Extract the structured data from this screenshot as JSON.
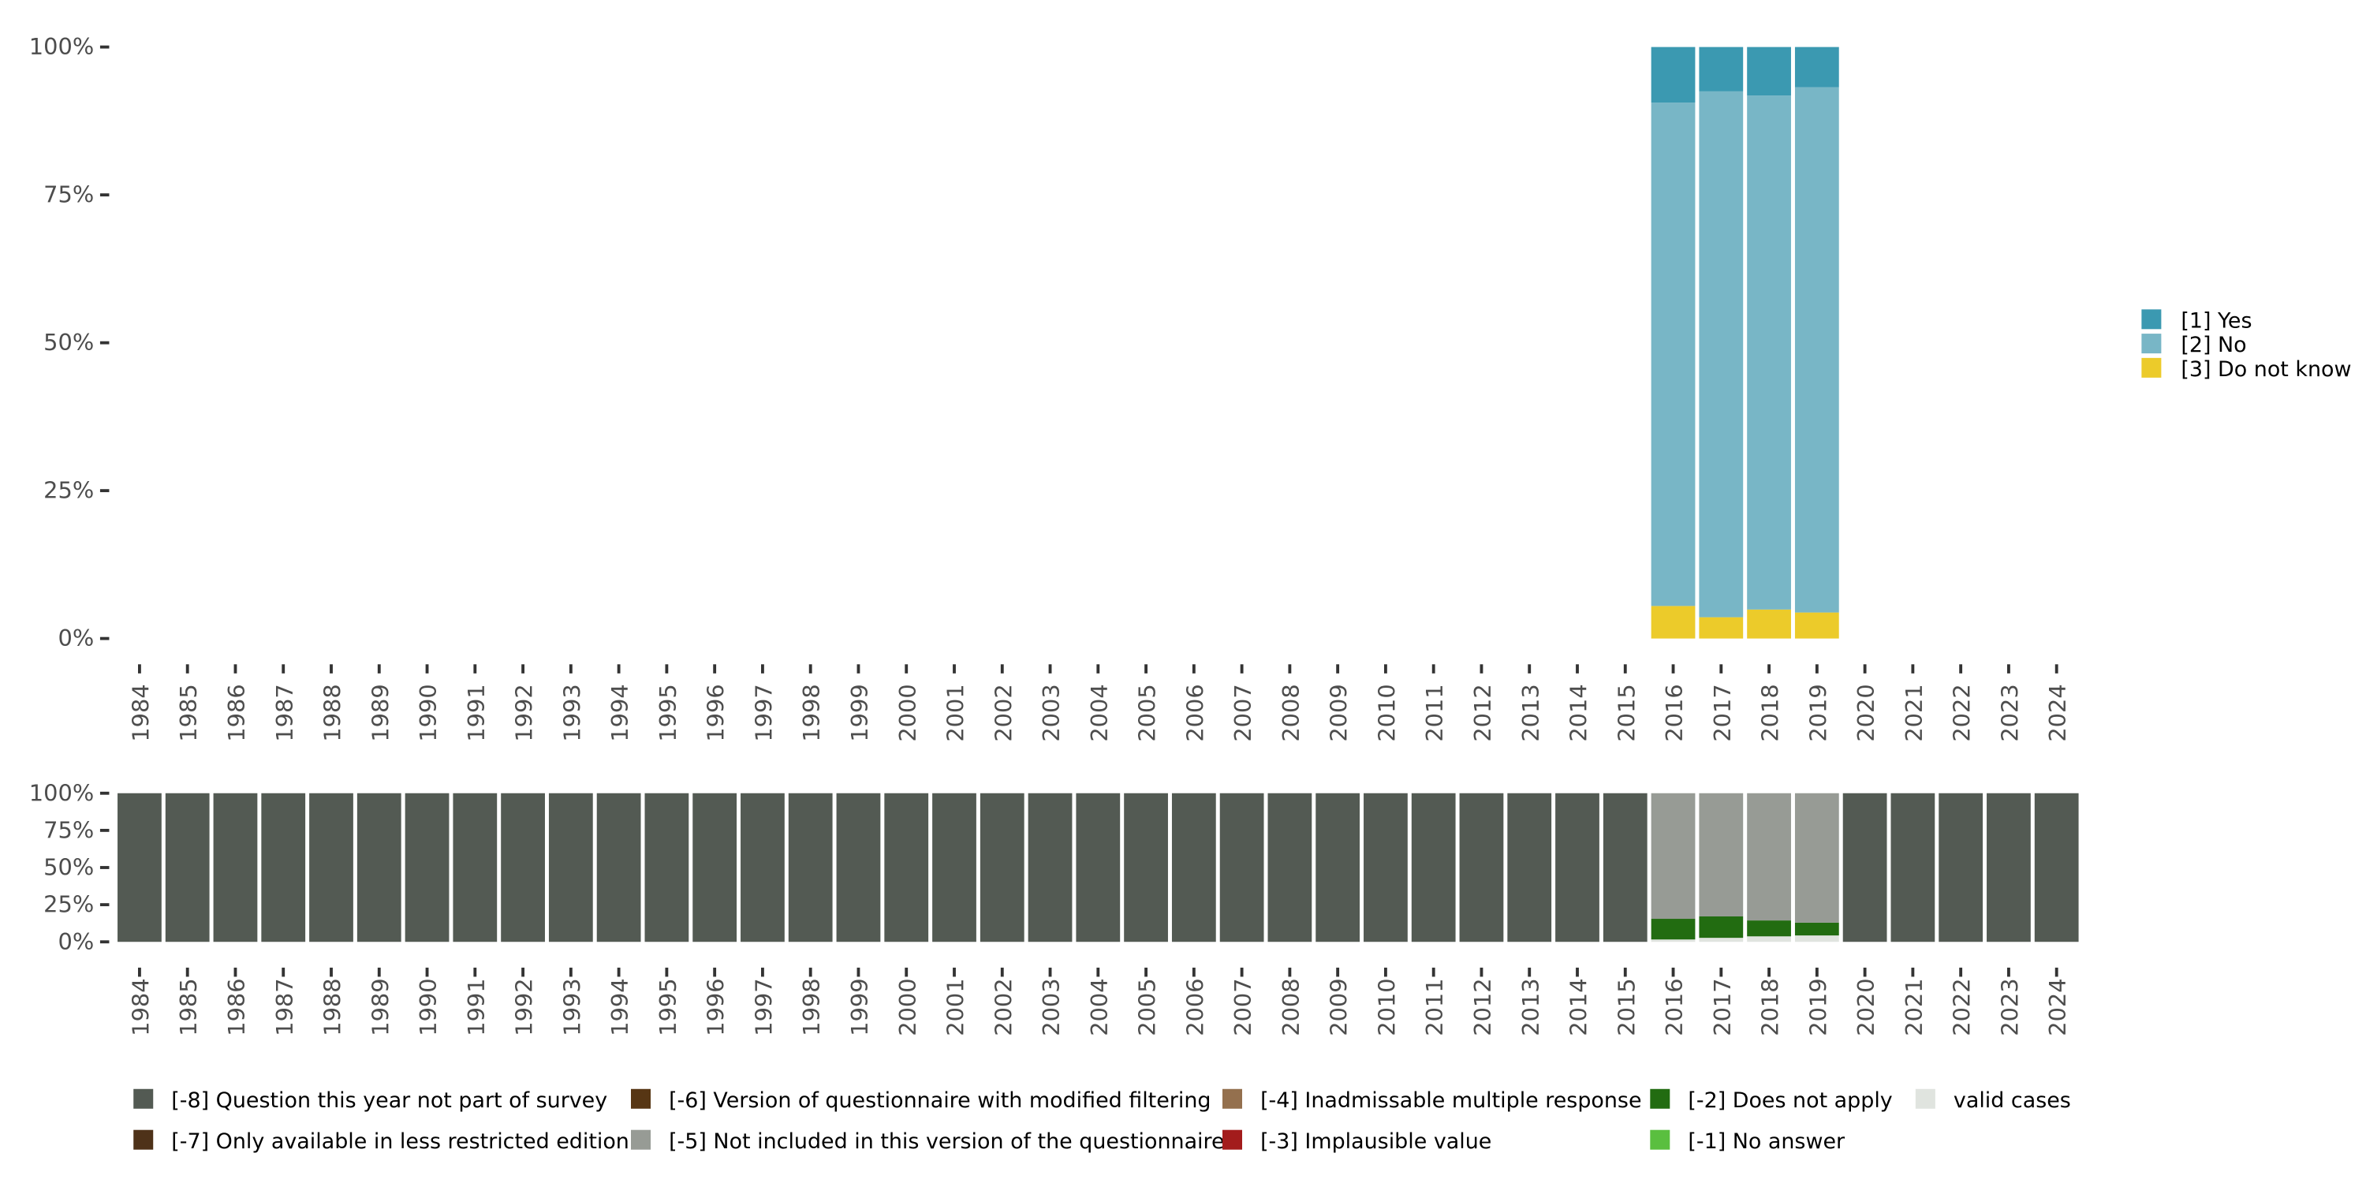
{
  "chart_data": [
    {
      "type": "bar",
      "stacked": true,
      "title": "",
      "xlabel": "",
      "ylabel": "",
      "ylim": [
        0,
        100
      ],
      "yticks": [
        "0%",
        "25%",
        "50%",
        "75%",
        "100%"
      ],
      "categories": [
        "1984",
        "1985",
        "1986",
        "1987",
        "1988",
        "1989",
        "1990",
        "1991",
        "1992",
        "1993",
        "1994",
        "1995",
        "1996",
        "1997",
        "1998",
        "1999",
        "2000",
        "2001",
        "2002",
        "2003",
        "2004",
        "2005",
        "2006",
        "2007",
        "2008",
        "2009",
        "2010",
        "2011",
        "2012",
        "2013",
        "2014",
        "2015",
        "2016",
        "2017",
        "2018",
        "2019",
        "2020",
        "2021",
        "2022",
        "2023",
        "2024"
      ],
      "legend_position": "right",
      "series": [
        {
          "name": "[3] Do not know",
          "color": "#eccb2a",
          "values": {
            "2016": 5.5,
            "2017": 3.6,
            "2018": 4.9,
            "2019": 4.4
          }
        },
        {
          "name": "[2] No",
          "color": "#78b6c6",
          "values": {
            "2016": 85.1,
            "2017": 88.9,
            "2018": 86.9,
            "2019": 88.8
          }
        },
        {
          "name": "[1] Yes",
          "color": "#3b99b1",
          "values": {
            "2016": 9.4,
            "2017": 7.5,
            "2018": 8.2,
            "2019": 6.8
          }
        }
      ],
      "legend": [
        "[1] Yes",
        "[2] No",
        "[3] Do not know"
      ]
    },
    {
      "type": "bar",
      "stacked": true,
      "ylim": [
        0,
        100
      ],
      "yticks": [
        "0%",
        "25%",
        "50%",
        "75%",
        "100%"
      ],
      "legend_position": "bottom",
      "series": [
        {
          "name": "valid cases",
          "color": "#e0e4df",
          "values": {
            "2016": 1.6,
            "2017": 2.7,
            "2018": 3.7,
            "2019": 4.3
          }
        },
        {
          "name": "[-2] Does not apply",
          "color": "#226c11",
          "values": {
            "2016": 13.9,
            "2017": 14.4,
            "2018": 10.7,
            "2019": 8.6
          }
        },
        {
          "name": "[-5] Not included in this version of the questionnaire",
          "color": "#979b95",
          "values": {
            "2016": 84.5,
            "2017": 82.9,
            "2018": 85.6,
            "2019": 87.1
          }
        },
        {
          "name": "[-8] Question this year not part of survey",
          "color": "#535a53",
          "values": {
            "1984": 100,
            "1985": 100,
            "1986": 100,
            "1987": 100,
            "1988": 100,
            "1989": 100,
            "1990": 100,
            "1991": 100,
            "1992": 100,
            "1993": 100,
            "1994": 100,
            "1995": 100,
            "1996": 100,
            "1997": 100,
            "1998": 100,
            "1999": 100,
            "2000": 100,
            "2001": 100,
            "2002": 100,
            "2003": 100,
            "2004": 100,
            "2005": 100,
            "2006": 100,
            "2007": 100,
            "2008": 100,
            "2009": 100,
            "2010": 100,
            "2011": 100,
            "2012": 100,
            "2013": 100,
            "2014": 100,
            "2015": 100,
            "2020": 100,
            "2021": 100,
            "2022": 100,
            "2023": 100,
            "2024": 100
          }
        }
      ],
      "legend": [
        {
          "label": "[-8] Question this year not part of survey",
          "color": "#535a53"
        },
        {
          "label": "[-7] Only available in less restricted edition",
          "color": "#4e3219"
        },
        {
          "label": "[-6] Version of questionnaire with modified filtering",
          "color": "#573614"
        },
        {
          "label": "[-5] Not included in this version of the questionnaire",
          "color": "#979b95"
        },
        {
          "label": "[-4] Inadmissable multiple response",
          "color": "#94704e"
        },
        {
          "label": "[-3] Implausible value",
          "color": "#a31c1c"
        },
        {
          "label": "[-2] Does not apply",
          "color": "#226c11"
        },
        {
          "label": "[-1] No answer",
          "color": "#5abf3f"
        },
        {
          "label": "valid cases",
          "color": "#e0e4df"
        }
      ]
    }
  ]
}
